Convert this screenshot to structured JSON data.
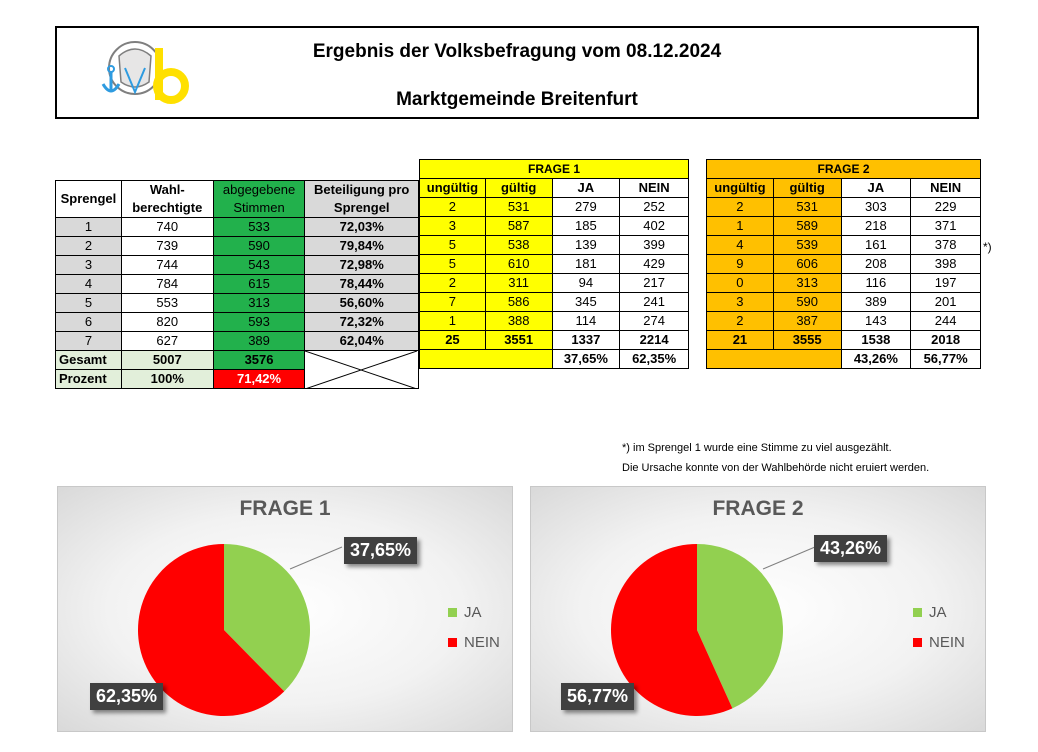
{
  "header": {
    "title": "Ergebnis der Volksbefragung vom 08.12.2024",
    "subtitle": "Marktgemeinde Breitenfurt",
    "logo_text": "b"
  },
  "colors": {
    "green": "#22b14c",
    "yellow": "#ffff00",
    "orange": "#ffc000",
    "ja": "#92d050",
    "nein": "#ff0000"
  },
  "table_left": {
    "headers": [
      "Sprengel",
      "Wahl-\nberechtigte",
      "abgegebene\nStimmen",
      "Beteiligung pro\nSprengel"
    ],
    "rows": [
      [
        "1",
        "740",
        "533",
        "72,03%"
      ],
      [
        "2",
        "739",
        "590",
        "79,84%"
      ],
      [
        "3",
        "744",
        "543",
        "72,98%"
      ],
      [
        "4",
        "784",
        "615",
        "78,44%"
      ],
      [
        "5",
        "553",
        "313",
        "56,60%"
      ],
      [
        "6",
        "820",
        "593",
        "72,32%"
      ],
      [
        "7",
        "627",
        "389",
        "62,04%"
      ]
    ],
    "gesamt": [
      "Gesamt",
      "5007",
      "3576"
    ],
    "prozent": [
      "Prozent",
      "100%",
      "71,42%"
    ]
  },
  "frage1": {
    "title": "FRAGE 1",
    "headers": [
      "ungültig",
      "gültig",
      "JA",
      "NEIN"
    ],
    "rows": [
      [
        "2",
        "531",
        "279",
        "252"
      ],
      [
        "3",
        "587",
        "185",
        "402"
      ],
      [
        "5",
        "538",
        "139",
        "399"
      ],
      [
        "5",
        "610",
        "181",
        "429"
      ],
      [
        "2",
        "311",
        "94",
        "217"
      ],
      [
        "7",
        "586",
        "345",
        "241"
      ],
      [
        "1",
        "388",
        "114",
        "274"
      ]
    ],
    "gesamt": [
      "25",
      "3551",
      "1337",
      "2214"
    ],
    "prozent": [
      "",
      "",
      "37,65%",
      "62,35%"
    ]
  },
  "frage2": {
    "title": "FRAGE 2",
    "headers": [
      "ungültig",
      "gültig",
      "JA",
      "NEIN"
    ],
    "rows": [
      [
        "2",
        "531",
        "303",
        "229"
      ],
      [
        "1",
        "589",
        "218",
        "371"
      ],
      [
        "4",
        "539",
        "161",
        "378"
      ],
      [
        "9",
        "606",
        "208",
        "398"
      ],
      [
        "0",
        "313",
        "116",
        "197"
      ],
      [
        "3",
        "590",
        "389",
        "201"
      ],
      [
        "2",
        "387",
        "143",
        "244"
      ]
    ],
    "gesamt": [
      "21",
      "3555",
      "1538",
      "2018"
    ],
    "prozent": [
      "",
      "",
      "43,26%",
      "56,77%"
    ]
  },
  "note": {
    "mark": "*)",
    "line1": "*) im Sprengel 1 wurde eine Stimme zu viel ausgezählt.",
    "line2": "Die Ursache konnte von der Wahlbehörde nicht eruiert werden."
  },
  "chart_data": [
    {
      "type": "pie",
      "title": "FRAGE 1",
      "categories": [
        "JA",
        "NEIN"
      ],
      "values": [
        37.65,
        62.35
      ],
      "labels": [
        "37,65%",
        "62,35%"
      ],
      "colors": [
        "#92d050",
        "#ff0000"
      ],
      "legend_position": "right"
    },
    {
      "type": "pie",
      "title": "FRAGE 2",
      "categories": [
        "JA",
        "NEIN"
      ],
      "values": [
        43.26,
        56.77
      ],
      "labels": [
        "43,26%",
        "56,77%"
      ],
      "colors": [
        "#92d050",
        "#ff0000"
      ],
      "legend_position": "right"
    }
  ]
}
